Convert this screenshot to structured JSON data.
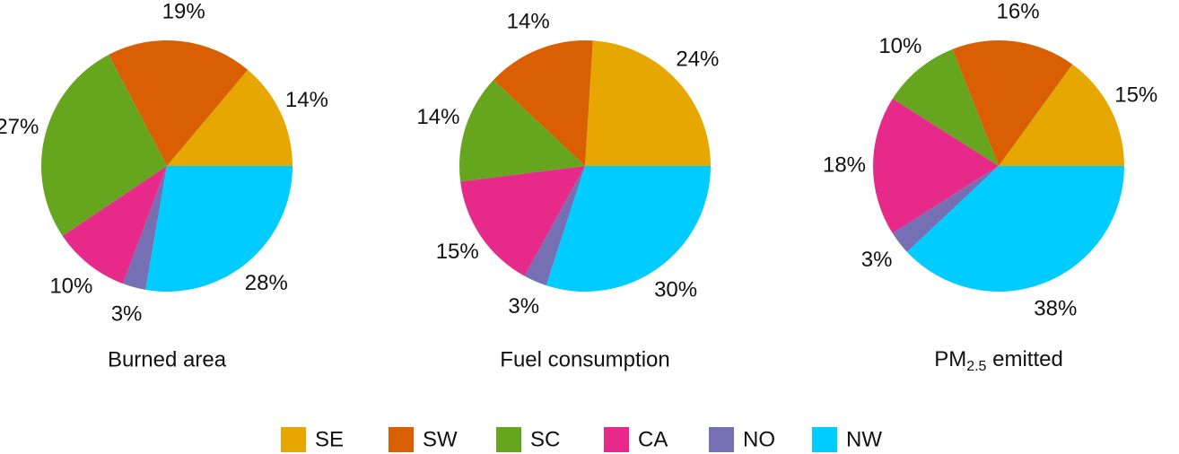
{
  "chart_data": [
    {
      "type": "pie",
      "title": "Burned area",
      "categories": [
        "SE",
        "SW",
        "SC",
        "CA",
        "NO",
        "NW"
      ],
      "values": [
        14,
        19,
        27,
        10,
        3,
        28
      ],
      "value_labels": [
        "14%",
        "19%",
        "27%",
        "10%",
        "3%",
        "28%"
      ],
      "colors": [
        "#e6a800",
        "#d95f02",
        "#66a61e",
        "#e7298a",
        "#7570b3",
        "#00ccff"
      ]
    },
    {
      "type": "pie",
      "title": "Fuel consumption",
      "categories": [
        "SE",
        "SW",
        "SC",
        "CA",
        "NO",
        "NW"
      ],
      "values": [
        24,
        14,
        14,
        15,
        3,
        30
      ],
      "value_labels": [
        "24%",
        "14%",
        "14%",
        "15%",
        "3%",
        "30%"
      ],
      "colors": [
        "#e6a800",
        "#d95f02",
        "#66a61e",
        "#e7298a",
        "#7570b3",
        "#00ccff"
      ]
    },
    {
      "type": "pie",
      "title": "PM2.5 emitted",
      "categories": [
        "SE",
        "SW",
        "SC",
        "CA",
        "NO",
        "NW"
      ],
      "values": [
        15,
        16,
        10,
        18,
        3,
        38
      ],
      "value_labels": [
        "15%",
        "16%",
        "10%",
        "18%",
        "3%",
        "38%"
      ],
      "colors": [
        "#e6a800",
        "#d95f02",
        "#66a61e",
        "#e7298a",
        "#7570b3",
        "#00ccff"
      ]
    }
  ]
}
